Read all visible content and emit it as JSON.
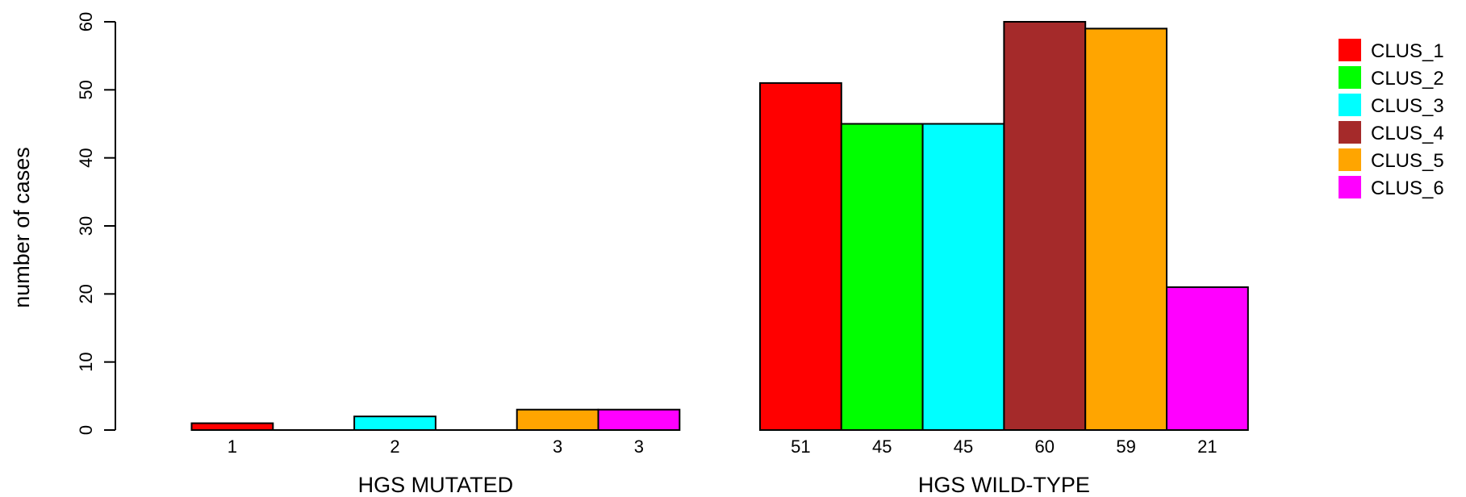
{
  "chart_data": {
    "type": "bar",
    "ylabel": "number of cases",
    "ylim": [
      0,
      60
    ],
    "yticks": [
      0,
      10,
      20,
      30,
      40,
      50,
      60
    ],
    "series_names": [
      "CLUS_1",
      "CLUS_2",
      "CLUS_3",
      "CLUS_4",
      "CLUS_5",
      "CLUS_6"
    ],
    "colors": [
      "#ff0000",
      "#00ff00",
      "#00ffff",
      "#a52a2a",
      "#ffa500",
      "#ff00ff"
    ],
    "groups": [
      {
        "label": "HGS MUTATED",
        "values": [
          1,
          0,
          2,
          0,
          3,
          3
        ]
      },
      {
        "label": "HGS WILD-TYPE",
        "values": [
          51,
          45,
          45,
          60,
          59,
          21
        ]
      }
    ],
    "legend_position": "top-right"
  }
}
